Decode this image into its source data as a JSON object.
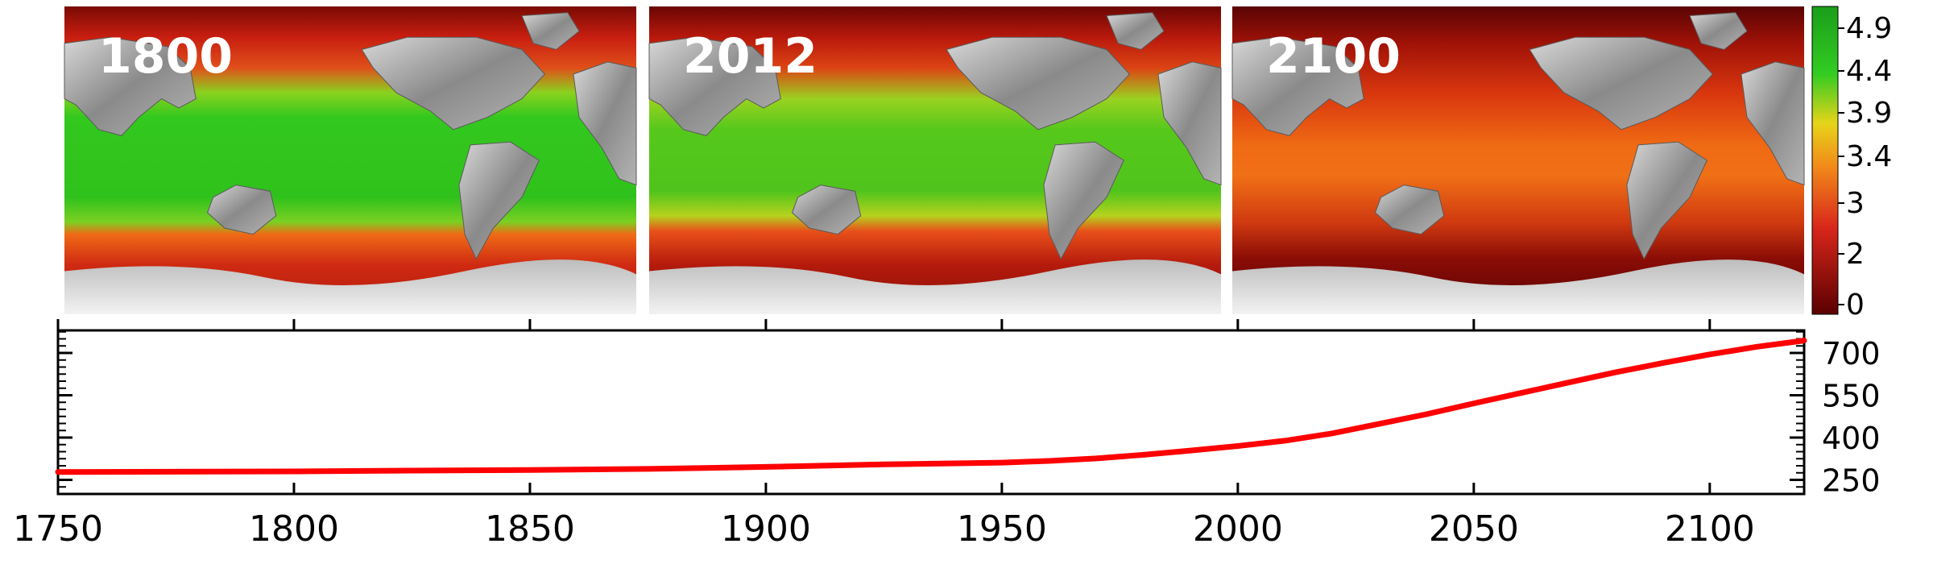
{
  "maps": [
    {
      "year_label": "1800",
      "level": "high"
    },
    {
      "year_label": "2012",
      "level": "mid"
    },
    {
      "year_label": "2100",
      "level": "low"
    }
  ],
  "colorbar": {
    "tick_labels": [
      "4.9",
      "4.4",
      "3.9",
      "3.4",
      "3",
      "2",
      "0"
    ],
    "colors": {
      "top": "#1a9e1a",
      "green": "#33cc22",
      "yellow": "#e6d41a",
      "orange": "#f28a1a",
      "red": "#d8261a",
      "bottom": "#5a0000"
    }
  },
  "chart_data": {
    "type": "line",
    "title": "",
    "xlabel": "",
    "ylabel": "",
    "x_tick_labels": [
      "1750",
      "1800",
      "1850",
      "1900",
      "1950",
      "2000",
      "2050",
      "2100"
    ],
    "y_tick_labels": [
      "700",
      "550",
      "400",
      "250"
    ],
    "xlim": [
      1750,
      2120
    ],
    "ylim": [
      200,
      780
    ],
    "y_axis_side": "right",
    "grid": false,
    "series": [
      {
        "color": "#ff0000",
        "x": [
          1750,
          1800,
          1825,
          1850,
          1875,
          1900,
          1925,
          1950,
          1960,
          1970,
          1980,
          1990,
          2000,
          2010,
          2020,
          2030,
          2040,
          2050,
          2060,
          2070,
          2080,
          2090,
          2100,
          2110,
          2120
        ],
        "y": [
          278,
          280,
          283,
          285,
          289,
          296,
          305,
          311,
          317,
          326,
          339,
          354,
          370,
          389,
          415,
          449,
          483,
          521,
          558,
          595,
          631,
          664,
          695,
          722,
          744
        ]
      }
    ]
  }
}
